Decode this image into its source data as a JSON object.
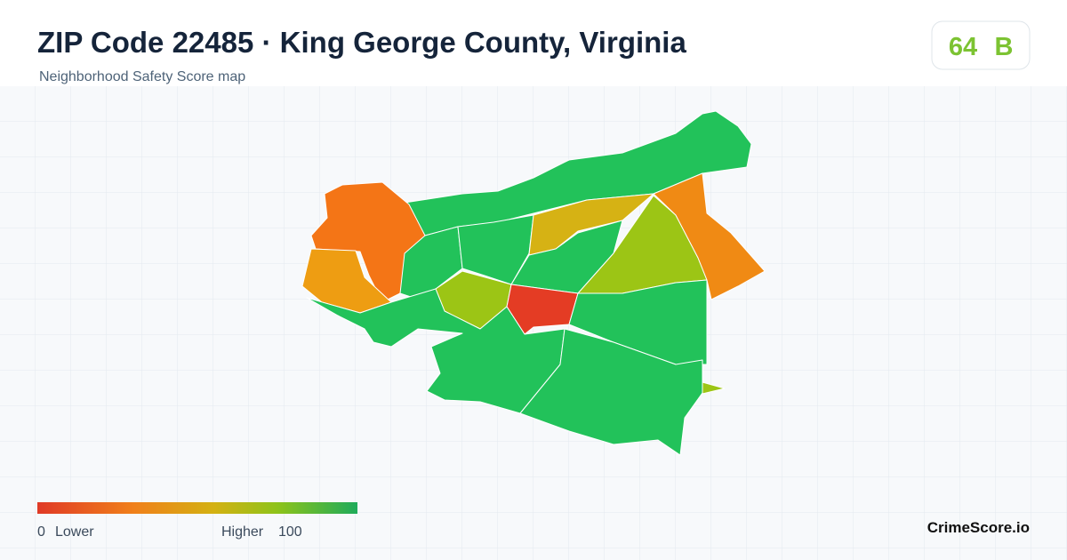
{
  "header": {
    "title": "ZIP Code 22485 · King George County, Virginia",
    "subtitle": "Neighborhood Safety Score map"
  },
  "score": {
    "value": 64,
    "grade": "B"
  },
  "legend": {
    "min": 0,
    "min_label": "Lower",
    "max_label": "Higher",
    "max": 100
  },
  "brand": "CrimeScore.io"
}
